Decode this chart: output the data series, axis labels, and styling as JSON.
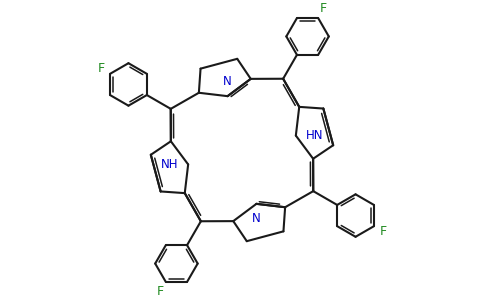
{
  "bg_color": "#ffffff",
  "bond_color": "#1a1a1a",
  "N_color": "#0000cd",
  "F_color": "#228B22",
  "lw": 1.5,
  "lw_double": 1.1,
  "figsize": [
    4.84,
    3.0
  ],
  "dpi": 100,
  "xlim": [
    -2.8,
    2.8
  ],
  "ylim": [
    -2.8,
    2.8
  ]
}
